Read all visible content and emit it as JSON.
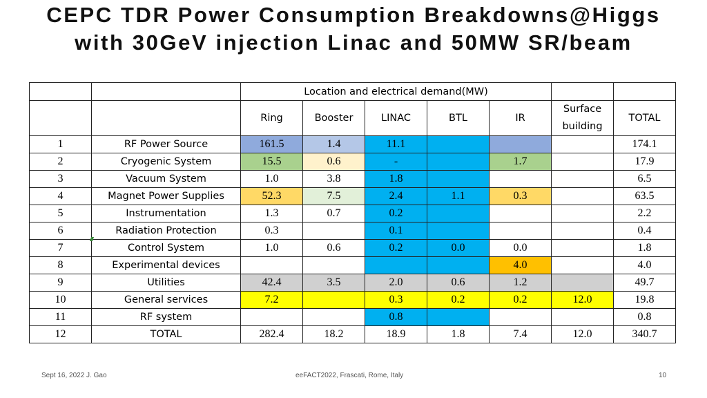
{
  "title": {
    "line1": "CEPC TDR Power Consumption Breakdowns@Higgs",
    "line2": "with 30GeV injection Linac and 50MW SR/beam"
  },
  "table": {
    "group_header": "Location and electrical demand(MW)",
    "columns": [
      "Ring",
      "Booster",
      "LINAC",
      "BTL",
      "IR",
      "Surface building",
      "TOTAL"
    ],
    "rows": [
      {
        "no": "1",
        "system": "RF Power Source",
        "values": [
          "161.5",
          "1.4",
          "11.1",
          "",
          "",
          "",
          "174.1"
        ]
      },
      {
        "no": "2",
        "system": "Cryogenic System",
        "values": [
          "15.5",
          "0.6",
          "-",
          "",
          "1.7",
          "",
          "17.9"
        ]
      },
      {
        "no": "3",
        "system": "Vacuum System",
        "values": [
          "1.0",
          "3.8",
          "1.8",
          "",
          "",
          "",
          "6.5"
        ]
      },
      {
        "no": "4",
        "system": "Magnet Power Supplies",
        "values": [
          "52.3",
          "7.5",
          "2.4",
          "1.1",
          "0.3",
          "",
          "63.5"
        ]
      },
      {
        "no": "5",
        "system": "Instrumentation",
        "values": [
          "1.3",
          "0.7",
          "0.2",
          "",
          "",
          "",
          "2.2"
        ]
      },
      {
        "no": "6",
        "system": "Radiation Protection",
        "values": [
          "0.3",
          "",
          "0.1",
          "",
          "",
          "",
          "0.4"
        ]
      },
      {
        "no": "7",
        "system": "Control System",
        "values": [
          "1.0",
          "0.6",
          "0.2",
          "0.0",
          "0.0",
          "",
          "1.8"
        ]
      },
      {
        "no": "8",
        "system": "Experimental devices",
        "values": [
          "",
          "",
          "",
          "",
          "4.0",
          "",
          "4.0"
        ]
      },
      {
        "no": "9",
        "system": "Utilities",
        "values": [
          "42.4",
          "3.5",
          "2.0",
          "0.6",
          "1.2",
          "",
          "49.7"
        ]
      },
      {
        "no": "10",
        "system": "General services",
        "values": [
          "7.2",
          "",
          "0.3",
          "0.2",
          "0.2",
          "12.0",
          "19.8"
        ]
      },
      {
        "no": "11",
        "system": "RF system",
        "values": [
          "",
          "",
          "0.8",
          "",
          "",
          "",
          "0.8"
        ]
      },
      {
        "no": "12",
        "system": "TOTAL",
        "values": [
          "282.4",
          "18.2",
          "18.9",
          "1.8",
          "7.4",
          "12.0",
          "340.7"
        ]
      }
    ],
    "colors": {
      "blue": "#00b0f0",
      "light_blue": "#b4c7e7",
      "periwinkle": "#8faadc",
      "green": "#a9d18e",
      "cream": "#fff2cc",
      "light_green": "#e2f0d9",
      "gold": "#ffd966",
      "orange": "#ffc000",
      "gray": "#d0d0d0",
      "yellow": "#ffff00"
    }
  },
  "footer": {
    "left": "Sept 16, 2022 J. Gao",
    "center": "eeFACT2022, Frascati, Rome, Italy",
    "page": "10"
  }
}
